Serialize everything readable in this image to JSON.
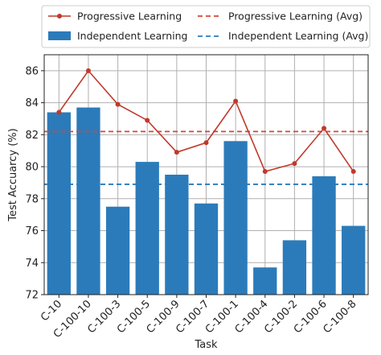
{
  "chart_data": {
    "type": "bar",
    "xlabel": "Task",
    "ylabel": "Test Accuarcy (%)",
    "ylim": [
      72,
      87
    ],
    "yticks": [
      72,
      74,
      76,
      78,
      80,
      82,
      84,
      86
    ],
    "grid": true,
    "legend_position": "top",
    "categories": [
      "C-10",
      "C-100-10",
      "C-100-3",
      "C-100-5",
      "C-100-9",
      "C-100-7",
      "C-100-1",
      "C-100-4",
      "C-100-2",
      "C-100-6",
      "C-100-8"
    ],
    "series": [
      {
        "name": "Independent Learning",
        "type": "bar",
        "color": "#2b7bba",
        "values": [
          83.4,
          83.7,
          77.5,
          80.3,
          79.5,
          77.7,
          81.6,
          73.7,
          75.4,
          79.4,
          76.3
        ]
      },
      {
        "name": "Progressive Learning",
        "type": "line",
        "color": "#c0392b",
        "values": [
          83.4,
          86.0,
          83.9,
          82.9,
          80.9,
          81.5,
          84.1,
          79.7,
          80.2,
          82.4,
          79.7
        ]
      }
    ],
    "reference_lines": [
      {
        "name": "Progressive Learning (Avg)",
        "value": 82.2,
        "color": "#d64535",
        "style": "dashed"
      },
      {
        "name": "Independent Learning (Avg)",
        "value": 78.9,
        "color": "#2b7bba",
        "style": "dashed"
      }
    ]
  }
}
